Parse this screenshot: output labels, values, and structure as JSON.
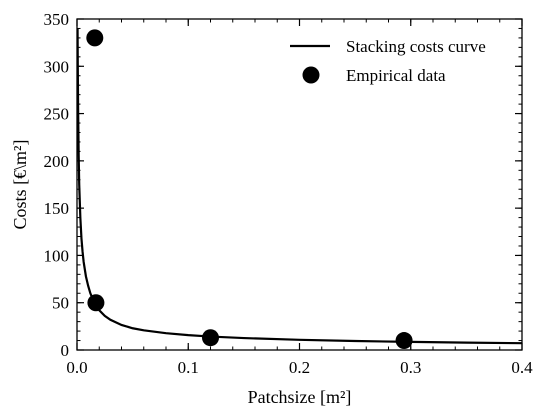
{
  "chart_data": {
    "type": "scatter",
    "title": "",
    "xlabel": "Patchsize [m²]",
    "ylabel": "Costs [€\\m²]",
    "xlim": [
      0.0,
      0.4
    ],
    "ylim": [
      0,
      350
    ],
    "x_ticks": [
      0.0,
      0.1,
      0.2,
      0.3,
      0.4
    ],
    "x_tick_labels": [
      "0.0",
      "0.1",
      "0.2",
      "0.3",
      "0.4"
    ],
    "y_ticks": [
      0,
      50,
      100,
      150,
      200,
      250,
      300,
      350
    ],
    "y_tick_labels": [
      "0",
      "50",
      "100",
      "150",
      "200",
      "250",
      "300",
      "350"
    ],
    "grid": false,
    "legend_position": "top-right",
    "series": [
      {
        "name": "Stacking costs curve",
        "kind": "line",
        "color": "#000000",
        "x": [
          0.0005,
          0.0007,
          0.001,
          0.0015,
          0.002,
          0.003,
          0.004,
          0.005,
          0.006,
          0.008,
          0.01,
          0.012,
          0.015,
          0.018,
          0.02,
          0.025,
          0.03,
          0.04,
          0.05,
          0.06,
          0.08,
          0.1,
          0.12,
          0.15,
          0.2,
          0.25,
          0.3,
          0.35,
          0.4
        ],
        "y": [
          340,
          300,
          255,
          205,
          175,
          140,
          118,
          104,
          93,
          78,
          68,
          60,
          51.5,
          45,
          42,
          36,
          32,
          26.5,
          23,
          20.8,
          17.8,
          15.7,
          14.2,
          12.6,
          10.8,
          9.5,
          8.6,
          7.8,
          7.2
        ]
      },
      {
        "name": "Empirical data",
        "kind": "scatter",
        "color": "#000000",
        "x": [
          0.016,
          0.017,
          0.12,
          0.294
        ],
        "y": [
          330,
          50,
          13,
          10
        ]
      }
    ]
  }
}
